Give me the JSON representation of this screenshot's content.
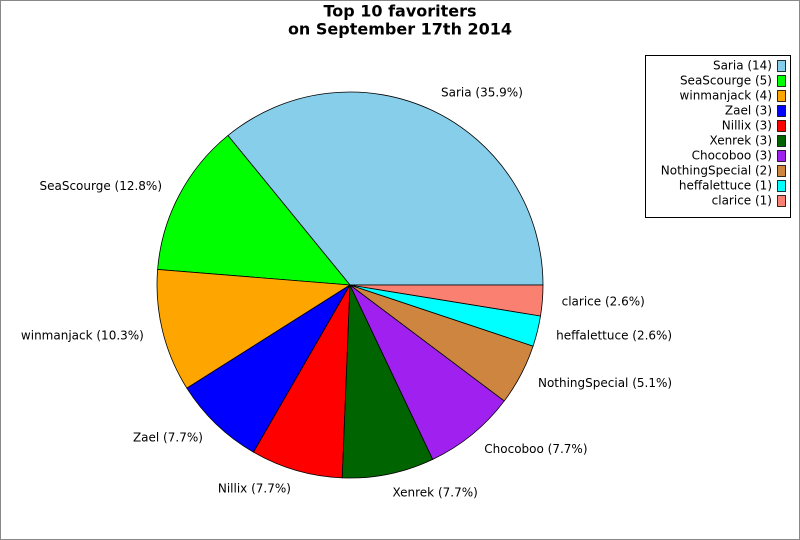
{
  "chart_data": {
    "type": "pie",
    "title": "Top 10 favoriters",
    "subtitle": "on September 17th 2014",
    "values": [
      14,
      5,
      4,
      3,
      3,
      3,
      3,
      2,
      1,
      1
    ],
    "value_labels": [
      "Saria (35.9%)",
      "SeaScourge (12.8%)",
      "winmanjack (10.3%)",
      "Zael (7.7%)",
      "Nillix (7.7%)",
      "Xenrek (7.7%)",
      "Chocoboo (7.7%)",
      "NothingSpecial (5.1%)",
      "heffalettuce (2.6%)",
      "clarice (2.6%)"
    ],
    "legend_labels": [
      "Saria (14)",
      "SeaScourge (5)",
      "winmanjack (4)",
      "Zael (3)",
      "Nillix (3)",
      "Xenrek (3)",
      "Chocoboo (3)",
      "NothingSpecial (2)",
      "heffalettuce (1)",
      "clarice (1)"
    ],
    "colors": [
      "#87ceeb",
      "#00ff00",
      "#ffa500",
      "#0000ff",
      "#ff0000",
      "#006400",
      "#a020f0",
      "#cd853f",
      "#00ffff",
      "#fa8072"
    ],
    "legend": "top-right"
  }
}
